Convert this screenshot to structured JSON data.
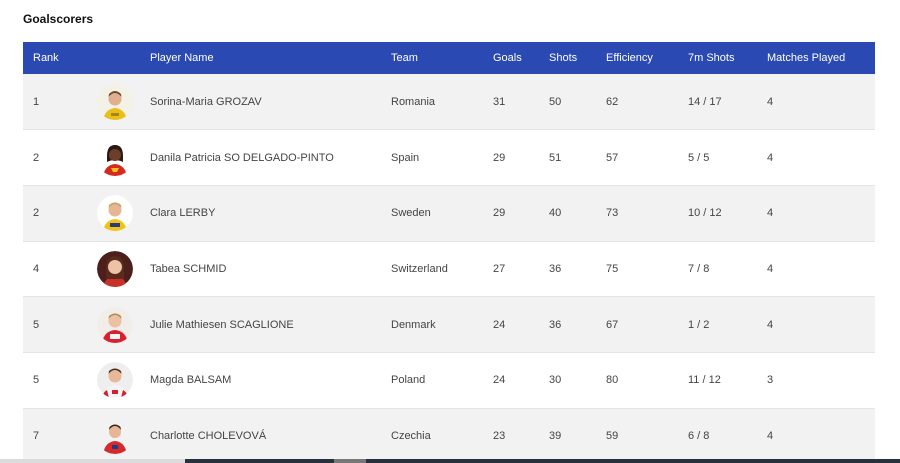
{
  "page": {
    "title": "Goalscorers"
  },
  "table": {
    "headers": {
      "rank": "Rank",
      "player": "Player Name",
      "team": "Team",
      "goals": "Goals",
      "shots": "Shots",
      "efficiency": "Efficiency",
      "seven_m": "7m Shots",
      "matches": "Matches Played"
    },
    "rows": [
      {
        "rank": "1",
        "player": "Sorina-Maria GROZAV",
        "team": "Romania",
        "goals": "31",
        "shots": "50",
        "efficiency": "62",
        "seven_m": "14 / 17",
        "matches": "4"
      },
      {
        "rank": "2",
        "player": "Danila Patricia SO DELGADO-PINTO",
        "team": "Spain",
        "goals": "29",
        "shots": "51",
        "efficiency": "57",
        "seven_m": "5 / 5",
        "matches": "4"
      },
      {
        "rank": "2",
        "player": "Clara LERBY",
        "team": "Sweden",
        "goals": "29",
        "shots": "40",
        "efficiency": "73",
        "seven_m": "10 / 12",
        "matches": "4"
      },
      {
        "rank": "4",
        "player": "Tabea SCHMID",
        "team": "Switzerland",
        "goals": "27",
        "shots": "36",
        "efficiency": "75",
        "seven_m": "7 / 8",
        "matches": "4"
      },
      {
        "rank": "5",
        "player": "Julie Mathiesen SCAGLIONE",
        "team": "Denmark",
        "goals": "24",
        "shots": "36",
        "efficiency": "67",
        "seven_m": "1 / 2",
        "matches": "4"
      },
      {
        "rank": "5",
        "player": "Magda BALSAM",
        "team": "Poland",
        "goals": "24",
        "shots": "30",
        "efficiency": "80",
        "seven_m": "11 / 12",
        "matches": "3"
      },
      {
        "rank": "7",
        "player": "Charlotte CHOLEVOVÁ",
        "team": "Czechia",
        "goals": "23",
        "shots": "39",
        "efficiency": "59",
        "seven_m": "6 / 8",
        "matches": "4"
      }
    ]
  },
  "colors": {
    "header_bg": "#2a49b3",
    "row_alt_bg": "#f2f2f2"
  }
}
